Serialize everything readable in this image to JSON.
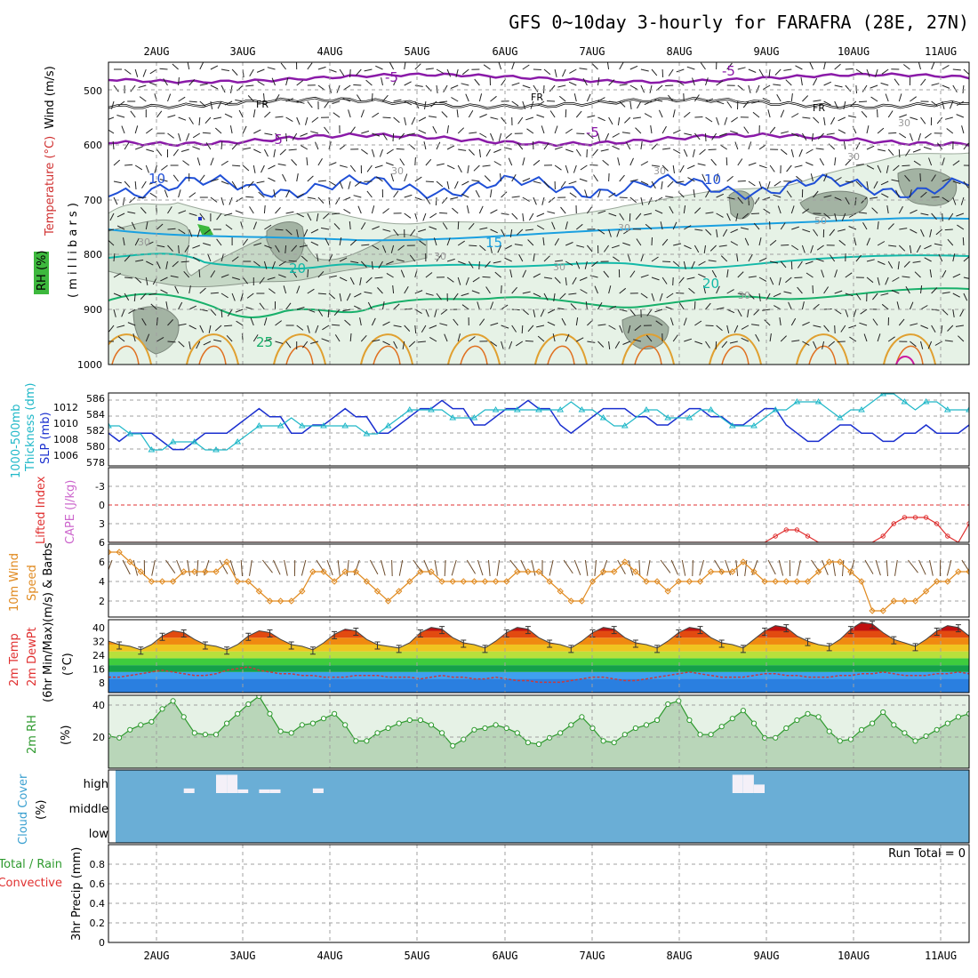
{
  "title": "GFS 0~10day 3-hourly for FARAFRA (28E, 27N)",
  "dates": [
    "2AUG",
    "3AUG",
    "4AUG",
    "5AUG",
    "6AUG",
    "7AUG",
    "8AUG",
    "9AUG",
    "10AUG",
    "11AUG"
  ],
  "run_total": "Run Total = 0",
  "colors": {
    "frame": "#000000",
    "grid": "#a0a0a0",
    "purple": "#8a1aa8",
    "freezing": "#000000",
    "blue10": "#1f4fd6",
    "cyan15": "#1aa0e0",
    "teal20": "#13b9a8",
    "green25": "#17b06a",
    "orange30": "#e0a030",
    "slp": "#1a2fcf",
    "thickness": "#20b8c8",
    "lifted": "#e03030",
    "cape": "#cc66cc",
    "wind10m": "#e08a20",
    "rh2m": "#2e9a2e",
    "cloud": "#6aaed6"
  },
  "panels": {
    "upper_air": {
      "labels": {
        "wind": "Wind (m/s)",
        "temperature": "Temperature (°C)",
        "rh": "RH (%)",
        "millibars": "( m i l l i b a r s )"
      },
      "yticks": [
        "500",
        "600",
        "700",
        "800",
        "900",
        "1000"
      ],
      "contour_labels": [
        "-5",
        "-5",
        "FR",
        "FR",
        "FR",
        "-5",
        "-5",
        "10",
        "10",
        "15",
        "20",
        "20",
        "25",
        "30",
        "30",
        "30",
        "30",
        "30",
        "30",
        "30",
        "30",
        "30",
        "50"
      ]
    },
    "slp_thickness": {
      "labels": {
        "thickness": "Thickness (dm)",
        "range": "1000-500mb",
        "slp": "SLP (mb)"
      },
      "left_ticks": [
        "586",
        "584",
        "582",
        "580",
        "578"
      ],
      "right_ticks": [
        "1012",
        "1010",
        "1008",
        "1006"
      ]
    },
    "lifted_cape": {
      "labels": {
        "lifted": "Lifted Index",
        "cape": "CAPE (J/kg)"
      },
      "yticks": [
        "-3",
        "0",
        "3",
        "6"
      ]
    },
    "wind10m": {
      "labels": {
        "wind": "10m Wind",
        "speed": "Speed",
        "barbs": "(m/s) & Barbs"
      },
      "yticks": [
        "6",
        "4",
        "2"
      ]
    },
    "temp2m": {
      "labels": {
        "temp": "2m Temp",
        "dewpt": "2m DewPt",
        "minmax": "(6hr Min/Max)",
        "unit": "(°C)"
      },
      "yticks": [
        "40",
        "32",
        "24",
        "16",
        "8"
      ]
    },
    "rh2m": {
      "labels": {
        "rh": "2m RH",
        "unit": "(%)"
      },
      "yticks": [
        "40",
        "20"
      ]
    },
    "cloud": {
      "labels": {
        "cloud": "Cloud Cover",
        "unit": "(%)"
      },
      "levels": [
        "high",
        "middle",
        "low"
      ]
    },
    "precip": {
      "labels": {
        "precip": "3hr Precip (mm)",
        "total": "Total / Rain",
        "convective": "Convective"
      },
      "yticks": [
        "0.8",
        "0.6",
        "0.4",
        "0.2",
        "0"
      ]
    }
  },
  "chart_data": {
    "type": "line",
    "x_unit": "3-hourly steps, 1 AUG 12Z to 11 AUG 06Z",
    "x": [
      0,
      1,
      2,
      3,
      4,
      5,
      6,
      7,
      8,
      9,
      10,
      11,
      12,
      13,
      14,
      15,
      16,
      17,
      18,
      19,
      20,
      21,
      22,
      23,
      24,
      25,
      26,
      27,
      28,
      29,
      30,
      31,
      32,
      33,
      34,
      35,
      36,
      37,
      38,
      39,
      40,
      41,
      42,
      43,
      44,
      45,
      46,
      47,
      48,
      49,
      50,
      51,
      52,
      53,
      54,
      55,
      56,
      57,
      58,
      59,
      60,
      61,
      62,
      63,
      64,
      65,
      66,
      67,
      68,
      69,
      70,
      71,
      72,
      73,
      74,
      75,
      76,
      77,
      78,
      79,
      80
    ],
    "series": [
      {
        "name": "SLP (mb)",
        "values": [
          1008,
          1007,
          1008,
          1008,
          1008,
          1007,
          1006,
          1006,
          1007,
          1008,
          1008,
          1008,
          1009,
          1010,
          1011,
          1010,
          1010,
          1008,
          1008,
          1009,
          1009,
          1010,
          1011,
          1010,
          1010,
          1008,
          1008,
          1009,
          1010,
          1011,
          1011,
          1012,
          1011,
          1011,
          1009,
          1009,
          1010,
          1011,
          1011,
          1012,
          1011,
          1011,
          1009,
          1008,
          1009,
          1010,
          1011,
          1011,
          1011,
          1010,
          1010,
          1009,
          1009,
          1010,
          1011,
          1011,
          1010,
          1010,
          1009,
          1009,
          1010,
          1011,
          1011,
          1009,
          1008,
          1007,
          1007,
          1008,
          1009,
          1009,
          1008,
          1008,
          1007,
          1007,
          1008,
          1008,
          1009,
          1008,
          1008,
          1008,
          1009
        ]
      },
      {
        "name": "Thickness (dm)",
        "values": [
          582,
          582,
          581,
          581,
          579,
          579,
          580,
          580,
          580,
          579,
          579,
          579,
          580,
          581,
          582,
          582,
          582,
          583,
          582,
          582,
          582,
          582,
          582,
          582,
          581,
          581,
          582,
          583,
          584,
          584,
          584,
          584,
          583,
          583,
          583,
          584,
          584,
          584,
          584,
          584,
          584,
          584,
          584,
          585,
          584,
          584,
          583,
          582,
          582,
          583,
          584,
          584,
          583,
          583,
          583,
          584,
          584,
          583,
          582,
          582,
          582,
          583,
          584,
          584,
          585,
          585,
          585,
          584,
          583,
          584,
          584,
          585,
          586,
          586,
          585,
          584,
          585,
          585,
          584,
          584,
          584
        ]
      },
      {
        "name": "10m Wind Speed (m/s)",
        "values": [
          7,
          7,
          6,
          5,
          4,
          4,
          4,
          5,
          5,
          5,
          5,
          6,
          4,
          4,
          3,
          2,
          2,
          2,
          3,
          5,
          5,
          4,
          5,
          5,
          4,
          3,
          2,
          3,
          4,
          5,
          5,
          4,
          4,
          4,
          4,
          4,
          4,
          4,
          5,
          5,
          5,
          4,
          3,
          2,
          2,
          4,
          5,
          5,
          6,
          5,
          4,
          4,
          3,
          4,
          4,
          4,
          5,
          5,
          5,
          6,
          5,
          4,
          4,
          4,
          4,
          4,
          5,
          6,
          6,
          5,
          4,
          1,
          1,
          2,
          2,
          2,
          3,
          4,
          4,
          5,
          5
        ]
      },
      {
        "name": "2m Temp (°C)",
        "values": [
          30,
          28,
          27,
          25,
          28,
          33,
          36,
          35,
          31,
          28,
          27,
          25,
          28,
          33,
          36,
          35,
          31,
          28,
          27,
          25,
          29,
          34,
          37,
          36,
          31,
          28,
          27,
          26,
          29,
          35,
          38,
          37,
          32,
          29,
          28,
          26,
          30,
          35,
          38,
          37,
          32,
          29,
          28,
          26,
          30,
          35,
          38,
          37,
          32,
          29,
          28,
          26,
          30,
          35,
          38,
          37,
          32,
          29,
          28,
          26,
          31,
          36,
          39,
          38,
          33,
          30,
          28,
          27,
          31,
          37,
          41,
          40,
          35,
          31,
          29,
          27,
          31,
          36,
          39,
          38,
          33
        ]
      },
      {
        "name": "2m DewPt (°C)",
        "values": [
          9,
          9,
          10,
          11,
          12,
          13,
          12,
          11,
          10,
          10,
          11,
          13,
          14,
          15,
          13,
          12,
          11,
          11,
          10,
          10,
          9,
          9,
          9,
          10,
          10,
          10,
          9,
          9,
          9,
          8,
          9,
          10,
          9,
          9,
          8,
          8,
          9,
          8,
          7,
          7,
          6,
          6,
          6,
          7,
          8,
          9,
          9,
          8,
          7,
          7,
          8,
          9,
          10,
          11,
          12,
          11,
          10,
          9,
          9,
          9,
          10,
          11,
          11,
          10,
          10,
          9,
          9,
          9,
          10,
          10,
          11,
          11,
          12,
          11,
          10,
          10,
          10,
          11,
          11,
          12,
          11
        ]
      },
      {
        "name": "2m RH (%)",
        "values": [
          20,
          19,
          24,
          27,
          29,
          37,
          42,
          32,
          22,
          21,
          21,
          28,
          34,
          40,
          45,
          34,
          23,
          22,
          27,
          28,
          31,
          34,
          27,
          17,
          17,
          22,
          25,
          28,
          30,
          30,
          27,
          22,
          14,
          18,
          24,
          25,
          27,
          25,
          22,
          16,
          15,
          19,
          22,
          27,
          32,
          25,
          17,
          16,
          21,
          25,
          27,
          30,
          40,
          42,
          30,
          21,
          21,
          26,
          31,
          36,
          28,
          19,
          19,
          25,
          30,
          34,
          32,
          23,
          17,
          18,
          24,
          28,
          35,
          27,
          22,
          17,
          20,
          24,
          28,
          32,
          34
        ]
      },
      {
        "name": "Lifted Index",
        "values": [
          6,
          6,
          6,
          6,
          6,
          6,
          6,
          6,
          6,
          6,
          6,
          6,
          6,
          6,
          6,
          6,
          6,
          6,
          6,
          6,
          6,
          6,
          6,
          6,
          6,
          6,
          6,
          6,
          6,
          6,
          6,
          6,
          6,
          6,
          6,
          6,
          6,
          6,
          6,
          6,
          6,
          6,
          6,
          6,
          6,
          6,
          6,
          6,
          6,
          6,
          6,
          6,
          6,
          6,
          6,
          6,
          6,
          6,
          6,
          6,
          6,
          6,
          5,
          4,
          4,
          5,
          6,
          6,
          6,
          6,
          6,
          6,
          5,
          3,
          2,
          2,
          2,
          3,
          5,
          6,
          3
        ]
      },
      {
        "name": "3hr Precip (mm)",
        "values": [
          0,
          0,
          0,
          0,
          0,
          0,
          0,
          0,
          0,
          0,
          0,
          0,
          0,
          0,
          0,
          0,
          0,
          0,
          0,
          0,
          0,
          0,
          0,
          0,
          0,
          0,
          0,
          0,
          0,
          0,
          0,
          0,
          0,
          0,
          0,
          0,
          0,
          0,
          0,
          0,
          0,
          0,
          0,
          0,
          0,
          0,
          0,
          0,
          0,
          0,
          0,
          0,
          0,
          0,
          0,
          0,
          0,
          0,
          0,
          0,
          0,
          0,
          0,
          0,
          0,
          0,
          0,
          0,
          0,
          0,
          0,
          0,
          0,
          0,
          0,
          0,
          0,
          0,
          0,
          0,
          0
        ]
      }
    ],
    "high_cloud_percent": [
      0,
      0,
      0,
      0,
      0,
      0,
      0,
      10,
      0,
      0,
      80,
      80,
      5,
      0,
      5,
      5,
      0,
      0,
      0,
      10,
      0,
      0,
      0,
      0,
      0,
      0,
      0,
      0,
      0,
      0,
      0,
      0,
      0,
      0,
      0,
      0,
      0,
      0,
      0,
      0,
      0,
      0,
      0,
      0,
      0,
      0,
      0,
      0,
      0,
      0,
      0,
      0,
      0,
      0,
      0,
      0,
      0,
      0,
      80,
      80,
      30,
      0,
      0,
      0,
      0,
      0,
      0,
      0,
      0,
      0,
      0,
      0,
      0,
      0,
      0,
      0,
      0,
      0,
      0,
      0,
      0
    ]
  }
}
